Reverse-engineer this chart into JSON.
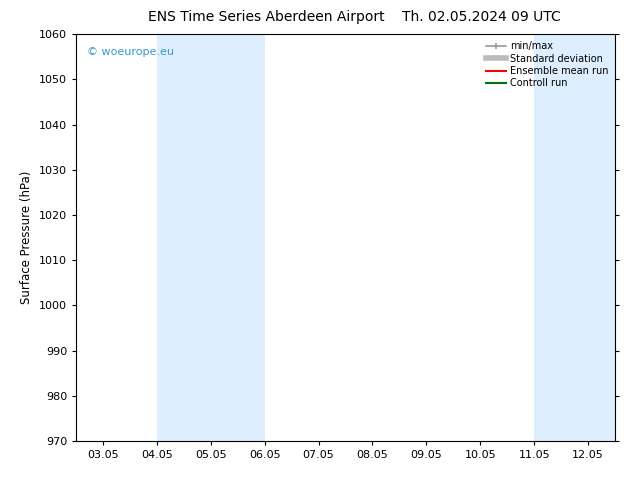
{
  "title_left": "ENS Time Series Aberdeen Airport",
  "title_right": "Th. 02.05.2024 09 UTC",
  "ylabel": "Surface Pressure (hPa)",
  "ylim": [
    970,
    1060
  ],
  "yticks": [
    970,
    980,
    990,
    1000,
    1010,
    1020,
    1030,
    1040,
    1050,
    1060
  ],
  "xtick_positions": [
    0,
    1,
    2,
    3,
    4,
    5,
    6,
    7,
    8,
    9
  ],
  "xtick_labels": [
    "03.05",
    "04.05",
    "05.05",
    "06.05",
    "07.05",
    "08.05",
    "09.05",
    "10.05",
    "11.05",
    "12.05"
  ],
  "xlim": [
    -0.5,
    9.5
  ],
  "shaded_bands": [
    {
      "x_start": 1,
      "x_end": 3
    },
    {
      "x_start": 8,
      "x_end": 9.5
    }
  ],
  "shaded_color": "#ddeeff",
  "watermark": "© woeurope.eu",
  "watermark_color": "#3399cc",
  "background_color": "#ffffff",
  "legend_entries": [
    {
      "label": "min/max",
      "color": "#999999",
      "lw": 1.2
    },
    {
      "label": "Standard deviation",
      "color": "#bbbbbb",
      "lw": 4
    },
    {
      "label": "Ensemble mean run",
      "color": "#ff0000",
      "lw": 1.5
    },
    {
      "label": "Controll run",
      "color": "#007700",
      "lw": 1.5
    }
  ],
  "title_fontsize": 10,
  "tick_fontsize": 8,
  "ylabel_fontsize": 8.5,
  "watermark_fontsize": 8
}
